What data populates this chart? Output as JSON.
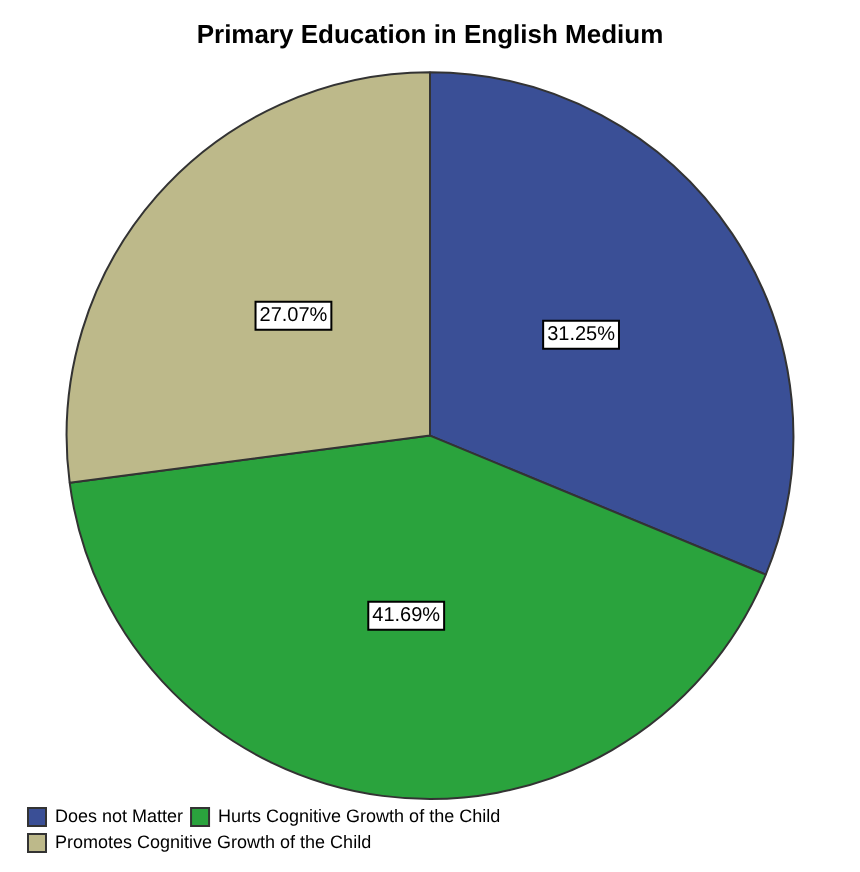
{
  "chart_data": {
    "type": "pie",
    "title": "Primary Education in English Medium",
    "categories": [
      "Does not Matter",
      "Hurts Cognitive Growth of the Child",
      "Promotes Cognitive Growth of the Child"
    ],
    "values": [
      31.25,
      41.69,
      27.07
    ],
    "colors": [
      "#3a4f96",
      "#2aa33d",
      "#bdb98a"
    ],
    "value_labels": [
      "31.25%",
      "41.69%",
      "27.07%"
    ],
    "legend": "bottom left"
  }
}
